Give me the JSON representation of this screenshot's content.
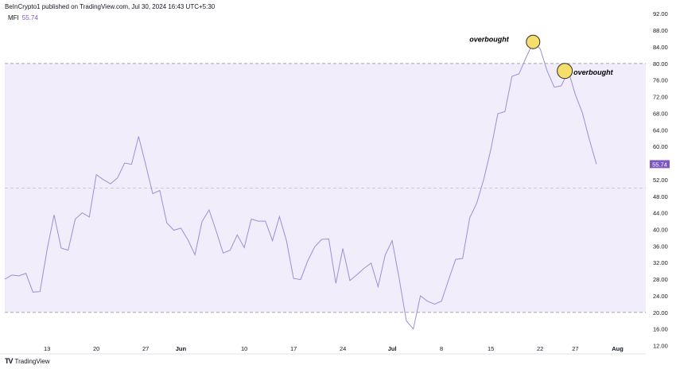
{
  "header": {
    "published": "BeInCrypto1 published on TradingView.com, Jul 30, 2024 16:43 UTC+5:30"
  },
  "legend": {
    "indicator": "MFI",
    "value": "55.74"
  },
  "footer": {
    "brand": "TradingView",
    "logo": "TV"
  },
  "colors": {
    "line": "#9c8fd6",
    "band": "#f1edfa",
    "price_label": "#7e57c2",
    "marker": "#f5de6c"
  },
  "chart_data": {
    "type": "line",
    "title": "",
    "ylim": [
      10,
      93
    ],
    "band": [
      20,
      80
    ],
    "midline": 50,
    "y_ticks": [
      "92.00",
      "88.00",
      "84.00",
      "80.00",
      "76.00",
      "72.00",
      "68.00",
      "64.00",
      "60.00",
      "56.00",
      "52.00",
      "48.00",
      "44.00",
      "40.00",
      "36.00",
      "32.00",
      "28.00",
      "24.00",
      "20.00",
      "16.00",
      "12.00"
    ],
    "x_ticks": [
      {
        "label": "13",
        "day": 6,
        "bold": false
      },
      {
        "label": "20",
        "day": 13,
        "bold": false
      },
      {
        "label": "27",
        "day": 20,
        "bold": false
      },
      {
        "label": "Jun",
        "day": 25,
        "bold": true
      },
      {
        "label": "10",
        "day": 34,
        "bold": false
      },
      {
        "label": "17",
        "day": 41,
        "bold": false
      },
      {
        "label": "24",
        "day": 48,
        "bold": false
      },
      {
        "label": "Jul",
        "day": 55,
        "bold": true
      },
      {
        "label": "8",
        "day": 62,
        "bold": false
      },
      {
        "label": "15",
        "day": 69,
        "bold": false
      },
      {
        "label": "22",
        "day": 76,
        "bold": false
      },
      {
        "label": "27",
        "day": 81,
        "bold": false
      },
      {
        "label": "Aug",
        "day": 87,
        "bold": true
      }
    ],
    "x_range": [
      0,
      91
    ],
    "x": [
      0,
      1,
      2,
      3,
      4,
      5,
      6,
      7,
      8,
      9,
      10,
      11,
      12,
      13,
      14,
      15,
      16,
      17,
      18,
      19,
      20,
      21,
      22,
      23,
      24,
      25,
      26,
      27,
      28,
      29,
      30,
      31,
      32,
      33,
      34,
      35,
      36,
      37,
      38,
      39,
      40,
      41,
      42,
      43,
      44,
      45,
      46,
      47,
      48,
      49,
      50,
      51,
      52,
      53,
      54,
      55,
      56,
      57,
      58,
      59,
      60,
      61,
      62,
      63,
      64,
      65,
      66,
      67,
      68,
      69,
      70,
      71,
      72,
      73,
      74,
      75,
      76,
      77,
      78,
      79,
      80,
      81,
      82,
      83,
      84
    ],
    "series": [
      {
        "values": [
          28,
          29,
          28.8,
          29.4,
          24.9,
          25,
          35,
          43.5,
          35.5,
          35,
          42.5,
          44,
          43,
          53.2,
          52,
          51,
          52.4,
          56,
          55.7,
          62.4,
          55.7,
          48.6,
          49.4,
          41.6,
          39.8,
          40.3,
          37.5,
          33.9,
          41.9,
          44.7,
          39.7,
          34.3,
          35,
          38.7,
          35.6,
          42.5,
          42,
          42,
          37.3,
          43.1,
          37.2,
          28.2,
          27.9,
          32.4,
          35.8,
          37.6,
          37.7,
          27,
          35.4,
          27.7,
          29.1,
          30.6,
          31.9,
          26.2,
          33.8,
          37.3,
          28.1,
          18,
          16,
          24,
          22.7,
          22,
          22.7,
          27.8,
          32.8,
          33,
          42.8,
          46.3,
          52.1,
          59.2,
          67.9,
          68.4,
          76.9,
          77.5,
          81.4,
          85,
          83.6,
          78.2,
          74.3,
          74.6,
          78.2,
          72.5,
          68.1,
          61.6,
          55.74
        ]
      }
    ],
    "annotations": [
      {
        "text": "overbought",
        "x": 75,
        "y": 85.2
      },
      {
        "text": "overbought",
        "x": 79.5,
        "y": 78.2
      }
    ],
    "last_value_label": "55.74"
  }
}
